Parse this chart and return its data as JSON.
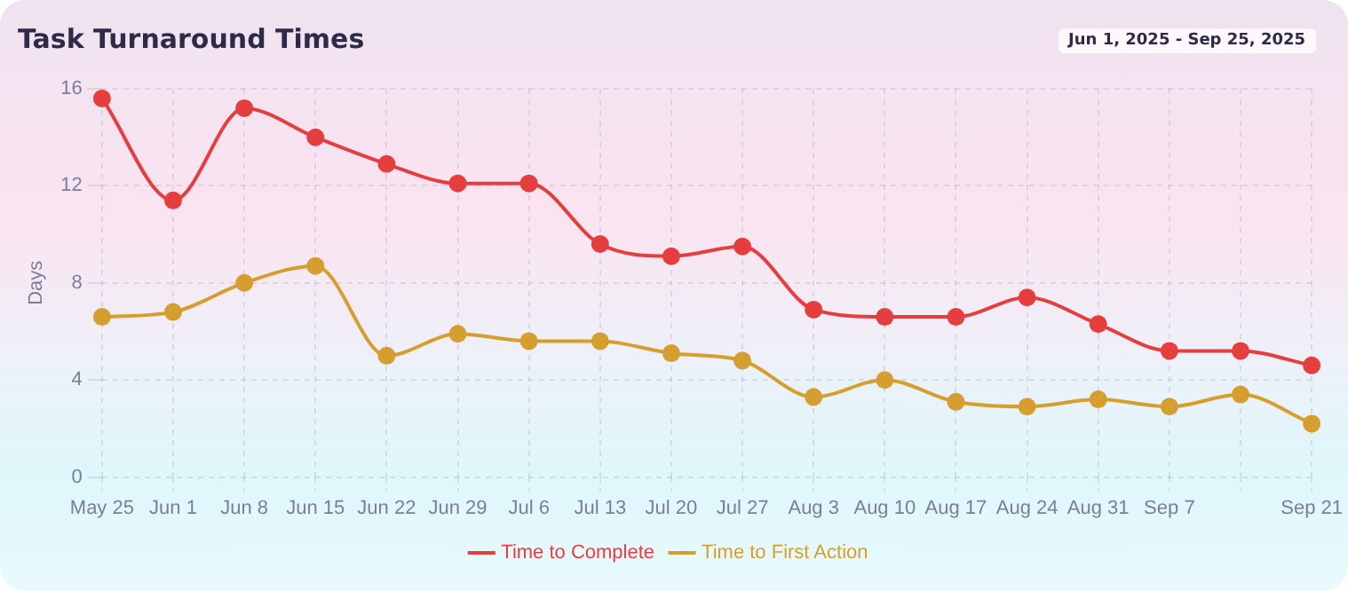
{
  "chart_data": {
    "type": "line",
    "title": "Task Turnaround Times",
    "ylabel": "Days",
    "annotations": [
      "Jun 1, 2025 - Sep 25, 2025"
    ],
    "categories": [
      "May 25",
      "Jun 1",
      "Jun 8",
      "Jun 15",
      "Jun 22",
      "Jun 29",
      "Jul 6",
      "Jul 13",
      "Jul 20",
      "Jul 27",
      "Aug 3",
      "Aug 10",
      "Aug 17",
      "Aug 24",
      "Aug 31",
      "Sep 7",
      null,
      "Sep 21"
    ],
    "series": [
      {
        "name": "Time to Complete",
        "color": "#e53e3e",
        "values": [
          15.6,
          11.4,
          15.2,
          14.0,
          12.9,
          12.1,
          12.1,
          9.6,
          9.1,
          9.5,
          6.9,
          6.6,
          6.6,
          7.4,
          6.3,
          5.2,
          5.2,
          4.6
        ]
      },
      {
        "name": "Time to First Action",
        "color": "#d69e2e",
        "values": [
          6.6,
          6.8,
          8.0,
          8.7,
          5.0,
          5.9,
          5.6,
          5.6,
          5.1,
          4.8,
          3.3,
          4.0,
          3.1,
          2.9,
          3.2,
          2.9,
          3.4,
          2.2
        ]
      }
    ],
    "ylim": [
      0,
      16
    ],
    "yticks": [
      0,
      4,
      8,
      12,
      16
    ],
    "grid": true,
    "legend": "bottom",
    "marker": "circle",
    "line_style": "solid"
  }
}
